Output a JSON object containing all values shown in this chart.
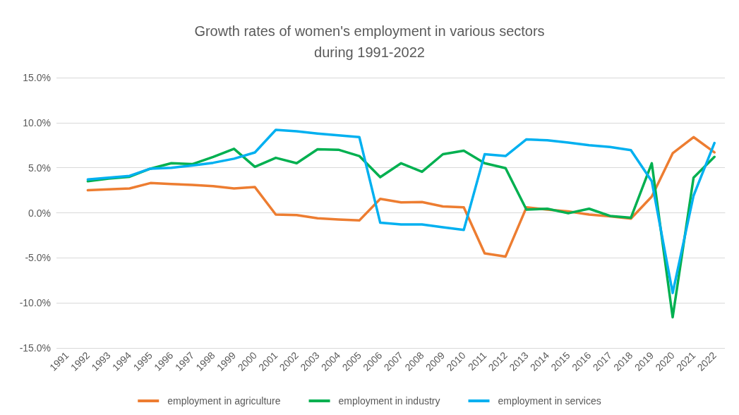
{
  "chart_data": {
    "type": "line",
    "title": "Growth rates of women's employment in various sectors\nduring 1991-2022",
    "categories": [
      "1991",
      "1992",
      "1993",
      "1994",
      "1995",
      "1996",
      "1997",
      "1998",
      "1999",
      "2000",
      "2001",
      "2002",
      "2003",
      "2004",
      "2005",
      "2006",
      "2007",
      "2008",
      "2009",
      "2010",
      "2011",
      "2012",
      "2013",
      "2014",
      "2015",
      "2016",
      "2017",
      "2018",
      "2019",
      "2020",
      "2021",
      "2022"
    ],
    "series": [
      {
        "name": "employment in agriculture",
        "color": "#ed7d31",
        "values": [
          null,
          2.5,
          2.6,
          2.7,
          3.3,
          3.2,
          3.1,
          2.95,
          2.7,
          2.85,
          -0.2,
          -0.25,
          -0.6,
          -0.75,
          -0.85,
          1.55,
          1.15,
          1.2,
          0.7,
          0.6,
          -4.5,
          -4.85,
          0.6,
          0.35,
          0.15,
          -0.2,
          -0.4,
          -0.65,
          1.8,
          6.6,
          8.4,
          6.7
        ]
      },
      {
        "name": "employment in industry",
        "color": "#00b050",
        "values": [
          null,
          3.5,
          3.8,
          4.0,
          4.9,
          5.5,
          5.4,
          6.2,
          7.1,
          5.1,
          6.1,
          5.5,
          7.05,
          7.0,
          6.3,
          3.95,
          5.5,
          4.55,
          6.5,
          6.9,
          5.5,
          4.95,
          0.35,
          0.45,
          -0.05,
          0.45,
          -0.35,
          -0.55,
          5.5,
          -11.6,
          3.9,
          6.2
        ]
      },
      {
        "name": "employment in services",
        "color": "#00b0f0",
        "values": [
          null,
          3.7,
          3.9,
          4.1,
          4.9,
          5.0,
          5.25,
          5.55,
          6.0,
          6.7,
          9.2,
          9.05,
          8.8,
          8.6,
          8.4,
          -1.1,
          -1.3,
          -1.3,
          -1.6,
          -1.9,
          6.5,
          6.3,
          8.15,
          8.05,
          7.8,
          7.5,
          7.3,
          6.95,
          3.5,
          -8.9,
          1.9,
          7.75
        ]
      }
    ],
    "ylim": [
      -15,
      15
    ],
    "yticks": [
      {
        "value": -15,
        "label": "-15.0%"
      },
      {
        "value": -10,
        "label": "-10.0%"
      },
      {
        "value": -5,
        "label": "-5.0%"
      },
      {
        "value": 0,
        "label": "0.0%"
      },
      {
        "value": 5,
        "label": "5.0%"
      },
      {
        "value": 10,
        "label": "10.0%"
      },
      {
        "value": 15,
        "label": "15.0%"
      }
    ],
    "grid": "y",
    "legend": "bottom",
    "marker": "none",
    "line_style": "solid"
  }
}
